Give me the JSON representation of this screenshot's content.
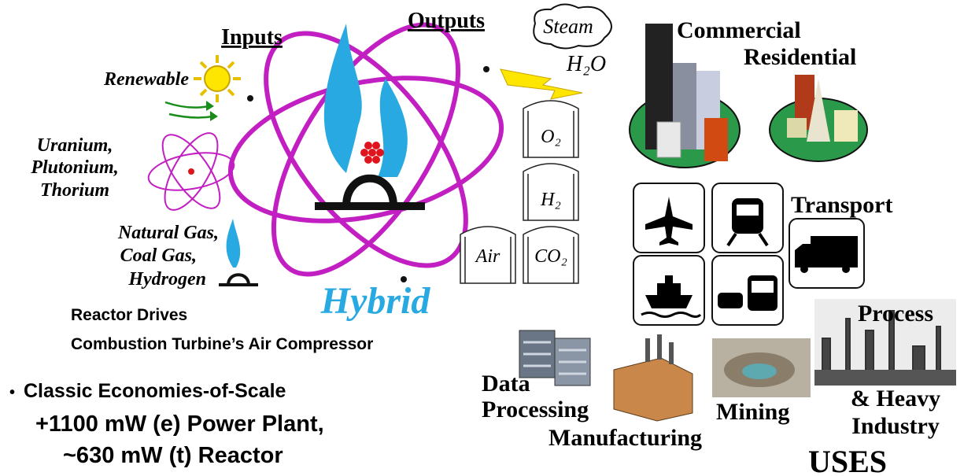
{
  "inputs": {
    "heading": "Inputs",
    "renewable": "Renewable",
    "nuclear": [
      "Uranium,",
      "Plutonium,",
      "Thorium"
    ],
    "fossil": [
      "Natural Gas,",
      "Coal Gas,",
      "Hydrogen"
    ]
  },
  "center": {
    "label": "Hybrid",
    "note": [
      "Reactor Drives",
      "Combustion Turbine’s Air Compressor"
    ]
  },
  "bullet": {
    "marker": "•",
    "text": "Classic Economies-of-Scale",
    "lines": [
      "+1100 mW (e) Power Plant,",
      "~630 mW (t) Reactor"
    ]
  },
  "outputs": {
    "heading": "Outputs",
    "steam": "Steam",
    "water": "H₂O",
    "tanks": [
      "O₂",
      "H₂",
      "Air",
      "CO₂"
    ]
  },
  "uses": {
    "commercial": "Commercial",
    "residential": "Residential",
    "transport": "Transport",
    "data_processing": [
      "Data",
      "Processing"
    ],
    "manufacturing": "Manufacturing",
    "mining": "Mining",
    "industry": [
      "Process",
      "& Heavy",
      "Industry"
    ],
    "footer": "USES"
  }
}
